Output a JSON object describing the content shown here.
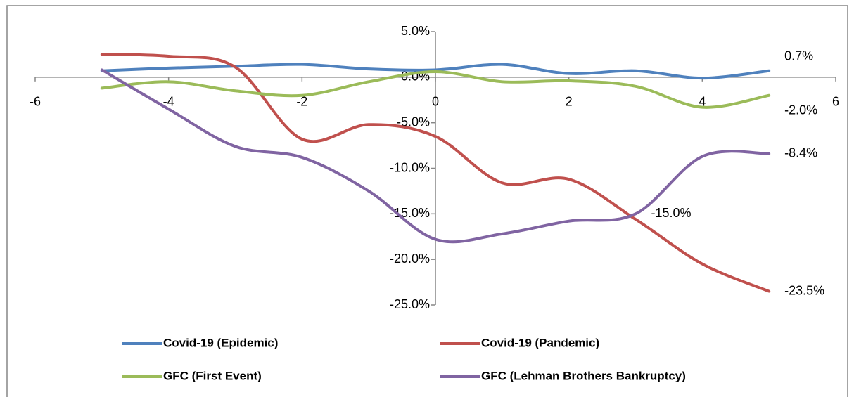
{
  "chart_data": {
    "type": "line",
    "xlim": [
      -6,
      6
    ],
    "xticks": [
      -6,
      -4,
      -2,
      0,
      2,
      4,
      6
    ],
    "ylim": [
      -25,
      5
    ],
    "yticks": [
      {
        "value": 5,
        "label": "5.0%"
      },
      {
        "value": 0,
        "label": "0.0%"
      },
      {
        "value": -5,
        "label": "-5.0%"
      },
      {
        "value": -10,
        "label": "-10.0%"
      },
      {
        "value": -15,
        "label": "-15.0%"
      },
      {
        "value": -20,
        "label": "-20.0%"
      },
      {
        "value": -25,
        "label": "-25.0%"
      }
    ],
    "x": [
      -5,
      -4,
      -3,
      -2,
      -1,
      0,
      1,
      2,
      3,
      4,
      5
    ],
    "legend": "bottom",
    "series": [
      {
        "name": "Covid-19 (Epidemic)",
        "color": "#4f81bd",
        "values": [
          0.7,
          1.0,
          1.2,
          1.4,
          0.9,
          0.8,
          1.4,
          0.4,
          0.7,
          -0.1,
          0.7
        ],
        "value_labels": [
          null,
          null,
          null,
          null,
          null,
          null,
          null,
          null,
          null,
          null,
          "0.7%"
        ]
      },
      {
        "name": "Covid-19 (Pandemic)",
        "color": "#c0504d",
        "values": [
          2.5,
          2.3,
          1.1,
          -6.8,
          -5.2,
          -6.5,
          -11.6,
          -11.2,
          -15.6,
          -20.5,
          -23.5
        ],
        "value_labels": [
          null,
          null,
          null,
          null,
          null,
          null,
          null,
          null,
          null,
          null,
          "-23.5%"
        ]
      },
      {
        "name": "GFC (First Event)",
        "color": "#9bbb59",
        "values": [
          -1.2,
          -0.5,
          -1.5,
          -2.0,
          -0.5,
          0.6,
          -0.5,
          -0.4,
          -1.0,
          -3.3,
          -2.0
        ],
        "value_labels": [
          null,
          null,
          null,
          null,
          null,
          null,
          null,
          null,
          null,
          null,
          "-2.0%"
        ]
      },
      {
        "name": "GFC (Lehman Brothers Bankruptcy)",
        "color": "#8064a2",
        "values": [
          0.8,
          -3.5,
          -7.6,
          -8.8,
          -12.5,
          -17.8,
          -17.2,
          -15.8,
          -15.0,
          -8.7,
          -8.4
        ],
        "value_labels": [
          null,
          null,
          null,
          null,
          null,
          null,
          null,
          null,
          "-15.0%",
          null,
          "-8.4%"
        ]
      }
    ]
  }
}
